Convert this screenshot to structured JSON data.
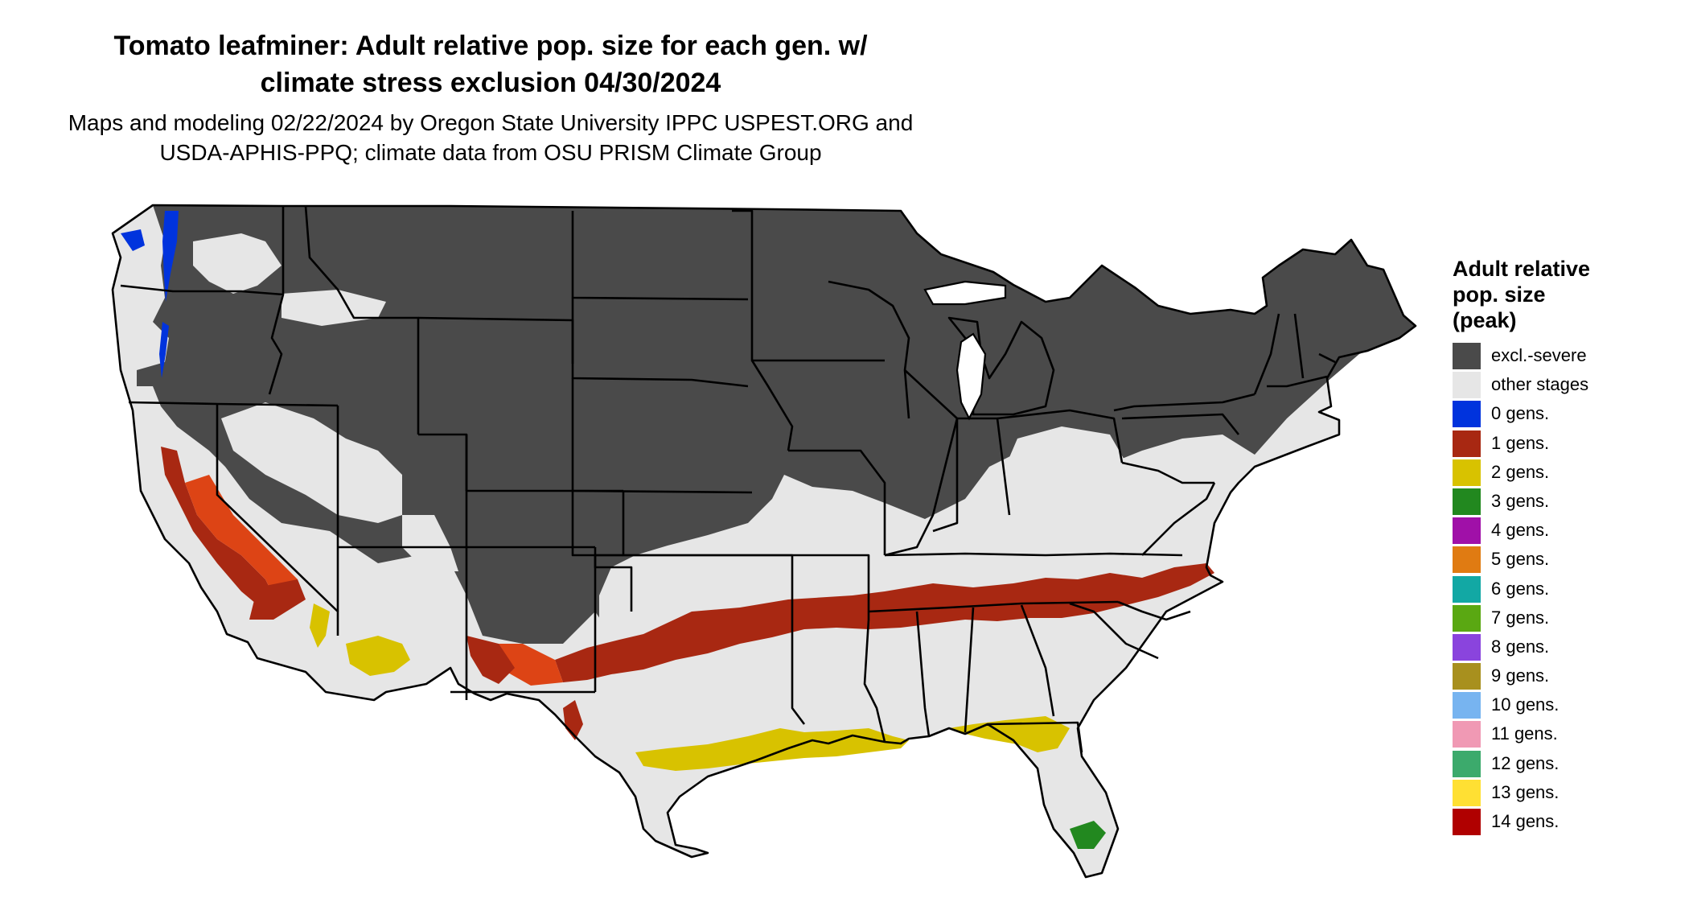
{
  "title_line1": "Tomato leafminer: Adult relative pop. size for each gen. w/",
  "title_line2": "climate stress exclusion 04/30/2024",
  "subtitle_line1": "Maps and modeling 02/22/2024 by Oregon State University IPPC USPEST.ORG and",
  "subtitle_line2": "USDA-APHIS-PPQ; climate data from OSU PRISM Climate Group",
  "legend": {
    "title_line1": "Adult relative",
    "title_line2": "pop. size",
    "title_line3": "(peak)",
    "items": [
      {
        "label": "excl.-severe",
        "color": "#4a4a4a"
      },
      {
        "label": "other stages",
        "color": "#e6e6e6"
      },
      {
        "label": "0 gens.",
        "color": "#0033dd"
      },
      {
        "label": "1 gens.",
        "color": "#a82812"
      },
      {
        "label": "2 gens.",
        "color": "#d8c200"
      },
      {
        "label": "3 gens.",
        "color": "#22881f"
      },
      {
        "label": "4 gens.",
        "color": "#a010a8"
      },
      {
        "label": "5 gens.",
        "color": "#e07b12"
      },
      {
        "label": "6 gens.",
        "color": "#12a8a4"
      },
      {
        "label": "7 gens.",
        "color": "#5aa812"
      },
      {
        "label": "8 gens.",
        "color": "#8a44dd"
      },
      {
        "label": "9 gens.",
        "color": "#a8901e"
      },
      {
        "label": "10 gens.",
        "color": "#77b4f0"
      },
      {
        "label": "11 gens.",
        "color": "#f099b4"
      },
      {
        "label": "12 gens.",
        "color": "#3caa6c"
      },
      {
        "label": "13 gens.",
        "color": "#ffe033"
      },
      {
        "label": "14 gens.",
        "color": "#b00000"
      }
    ]
  },
  "map": {
    "excluded_color": "#4a4a4a",
    "other_stages_color": "#e6e6e6",
    "one_gen_color": "#a82812",
    "one_gen_edge_color": "#dd4415",
    "two_gen_color": "#d8c200",
    "zero_gen_color": "#0033dd",
    "three_gen_color": "#22881f",
    "border_color": "#000000"
  }
}
